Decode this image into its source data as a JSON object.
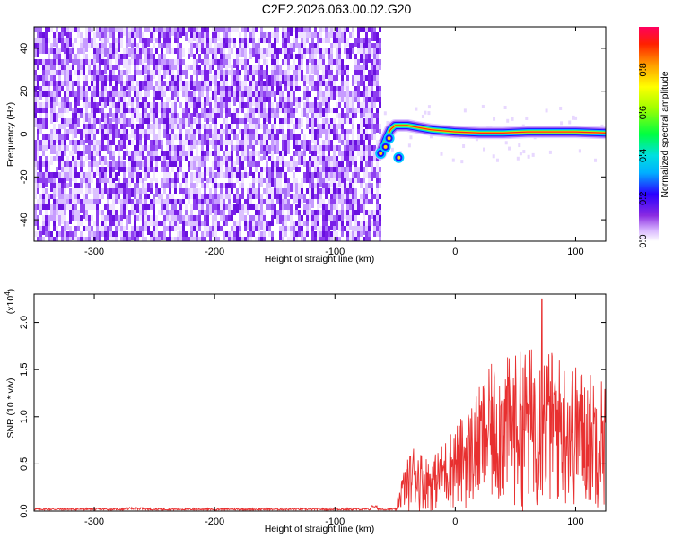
{
  "title": "C2E2.2026.063.00.02.G20",
  "chart_data": [
    {
      "type": "heatmap",
      "name": "spectrogram",
      "xlabel": "Height of straight line (km)",
      "ylabel": "Frequency (Hz)",
      "xlim": [
        -350,
        125
      ],
      "ylim": [
        -50,
        50
      ],
      "xticks": [
        -300,
        -200,
        -100,
        0,
        100
      ],
      "yticks": [
        -40,
        -20,
        0,
        20,
        40
      ],
      "noise_region_x": [
        -350,
        -62
      ],
      "signal_track": [
        {
          "x": -62,
          "f": -9
        },
        {
          "x": -58,
          "f": -3
        },
        {
          "x": -54,
          "f": 2
        },
        {
          "x": -50,
          "f": 4
        },
        {
          "x": -40,
          "f": 4
        },
        {
          "x": -30,
          "f": 3
        },
        {
          "x": -20,
          "f": 2
        },
        {
          "x": -10,
          "f": 1.5
        },
        {
          "x": 0,
          "f": 1
        },
        {
          "x": 20,
          "f": 0.5
        },
        {
          "x": 40,
          "f": 0.5
        },
        {
          "x": 60,
          "f": 1
        },
        {
          "x": 80,
          "f": 1
        },
        {
          "x": 100,
          "f": 1
        },
        {
          "x": 125,
          "f": 0.5
        }
      ]
    },
    {
      "type": "colorbar",
      "name": "amplitude-scale",
      "label": "Normalized spectral amplitude",
      "ticks": [
        "0.0",
        "0.2",
        "0.4",
        "0.6",
        "0.8"
      ],
      "range": [
        0,
        1
      ]
    },
    {
      "type": "line",
      "name": "snr",
      "xlabel": "Height of straight line (km)",
      "ylabel": "SNR (10 * v/v)",
      "scale_label": "(x10",
      "scale_exp": "4",
      "xlim": [
        -350,
        125
      ],
      "ylim": [
        0,
        2.3
      ],
      "xticks": [
        -300,
        -200,
        -100,
        0,
        100
      ],
      "yticks": [
        "0.0",
        "0.5",
        "1.0",
        "1.5",
        "2.0"
      ],
      "color": "#e83030",
      "envelope": [
        {
          "x": -350,
          "y": 0.02
        },
        {
          "x": -50,
          "y": 0.03
        },
        {
          "x": -45,
          "y": 0.3
        },
        {
          "x": -35,
          "y": 0.6
        },
        {
          "x": -20,
          "y": 0.45
        },
        {
          "x": -5,
          "y": 0.7
        },
        {
          "x": 10,
          "y": 0.9
        },
        {
          "x": 30,
          "y": 1.3
        },
        {
          "x": 50,
          "y": 1.4
        },
        {
          "x": 70,
          "y": 1.5
        },
        {
          "x": 90,
          "y": 1.35
        },
        {
          "x": 110,
          "y": 1.25
        },
        {
          "x": 125,
          "y": 1.2
        }
      ],
      "peak": {
        "x": 72,
        "y": 2.25
      }
    }
  ]
}
